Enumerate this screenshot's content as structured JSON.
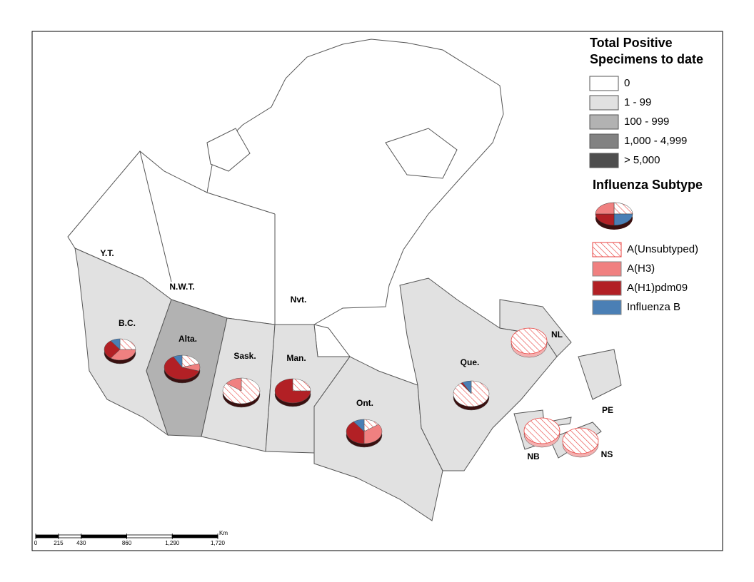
{
  "legend": {
    "total_title": [
      "Total Positive",
      "Specimens to date"
    ],
    "classes": [
      {
        "label": "0",
        "color": "#ffffff"
      },
      {
        "label": "1 - 99",
        "color": "#e1e1e1"
      },
      {
        "label": "100 - 999",
        "color": "#b2b2b2"
      },
      {
        "label": "1,000 - 4,999",
        "color": "#828282"
      },
      {
        "label": "> 5,000",
        "color": "#4e4e4e"
      }
    ],
    "subtype_title": "Influenza Subtype",
    "subtypes": [
      {
        "label": "A(Unsubtyped)",
        "color": "#e8423f",
        "hatched": true
      },
      {
        "label": "A(H3)",
        "color": "#f08080",
        "hatched": false
      },
      {
        "label": "A(H1)pdm09",
        "color": "#b22025",
        "hatched": false
      },
      {
        "label": "Influenza B",
        "color": "#4a7fb5",
        "hatched": false
      }
    ]
  },
  "regions": [
    {
      "label": "Y.T.",
      "fill": "#ffffff"
    },
    {
      "label": "N.W.T.",
      "fill": "#ffffff"
    },
    {
      "label": "Nvt.",
      "fill": "#ffffff"
    },
    {
      "label": "B.C.",
      "fill": "#e1e1e1"
    },
    {
      "label": "Alta.",
      "fill": "#b2b2b2"
    },
    {
      "label": "Sask.",
      "fill": "#e1e1e1"
    },
    {
      "label": "Man.",
      "fill": "#e1e1e1"
    },
    {
      "label": "Ont.",
      "fill": "#e1e1e1"
    },
    {
      "label": "Que.",
      "fill": "#e1e1e1"
    },
    {
      "label": "NL",
      "fill": "#e1e1e1"
    },
    {
      "label": "PE",
      "fill": "#e1e1e1"
    },
    {
      "label": "NB",
      "fill": "#e1e1e1"
    },
    {
      "label": "NS",
      "fill": "#e1e1e1"
    }
  ],
  "pies": [
    {
      "region": "B.C.",
      "values": [
        25,
        35,
        30,
        10
      ]
    },
    {
      "region": "Alta.",
      "values": [
        20,
        10,
        62,
        8
      ]
    },
    {
      "region": "Sask.",
      "values": [
        85,
        15,
        0,
        0
      ]
    },
    {
      "region": "Man.",
      "values": [
        25,
        0,
        75,
        0
      ]
    },
    {
      "region": "Ont.",
      "values": [
        15,
        35,
        40,
        10
      ]
    },
    {
      "region": "Que.",
      "values": [
        90,
        0,
        2,
        8
      ]
    },
    {
      "region": "NL",
      "values": [
        100,
        0,
        0,
        0
      ]
    },
    {
      "region": "NB",
      "values": [
        100,
        0,
        0,
        0
      ]
    },
    {
      "region": "NS",
      "values": [
        100,
        0,
        0,
        0
      ]
    }
  ],
  "scale_bar": {
    "unit": "Km",
    "lim": [
      0,
      1720
    ],
    "ticks": [
      0,
      215,
      430,
      860,
      {
        "value": 1290,
        "label": "1,290"
      },
      {
        "value": 1720,
        "label": "1,720"
      }
    ]
  }
}
